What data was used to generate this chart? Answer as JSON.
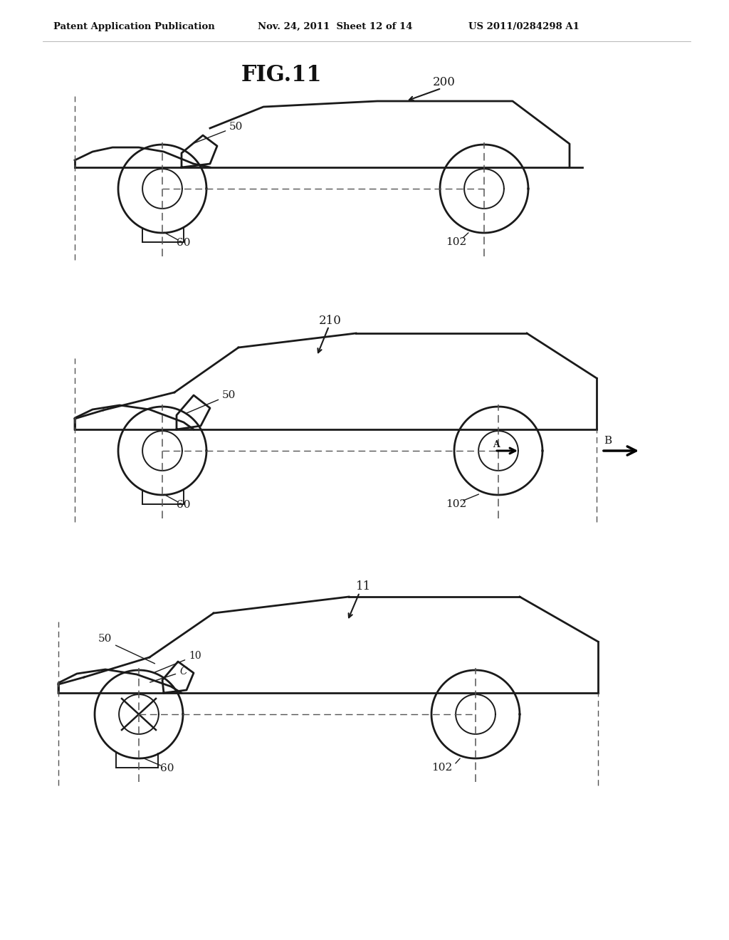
{
  "header_left": "Patent Application Publication",
  "header_mid": "Nov. 24, 2011  Sheet 12 of 14",
  "header_right": "US 2011/0284298 A1",
  "fig_title": "FIG.11",
  "bg_color": "#ffffff",
  "lc": "#1a1a1a",
  "dc": "#555555",
  "lw": 2.0,
  "car1_label": "200",
  "car2_label": "210",
  "car3_label": "11"
}
